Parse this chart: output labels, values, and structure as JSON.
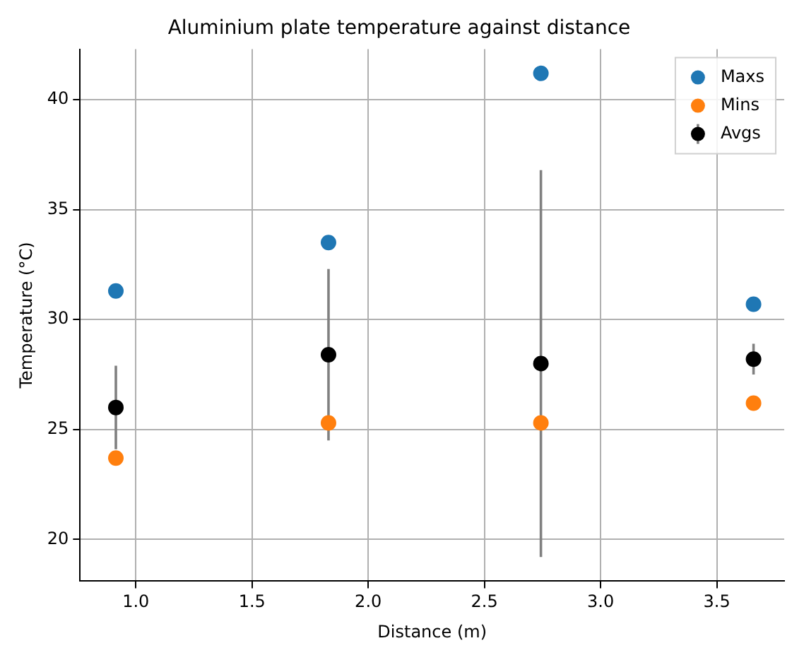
{
  "chart_data": {
    "type": "scatter",
    "title": "Aluminium plate temperature against distance",
    "xlabel": "Distance (m)",
    "ylabel": "Temperature (°C)",
    "x": [
      0.914,
      1.829,
      2.743,
      3.658
    ],
    "series": [
      {
        "name": "Maxs",
        "color": "#1f77b4",
        "values": [
          31.3,
          33.5,
          41.2,
          30.7
        ]
      },
      {
        "name": "Mins",
        "color": "#ff7f0e",
        "values": [
          23.7,
          25.3,
          25.3,
          26.2
        ]
      },
      {
        "name": "Avgs",
        "color": "#000000",
        "values": [
          26.0,
          28.4,
          28.0,
          28.2
        ],
        "errors": [
          1.9,
          3.9,
          8.8,
          0.7
        ]
      }
    ],
    "xlim": [
      0.76,
      3.79
    ],
    "xticks": [
      {
        "value": 1,
        "label": "1.0"
      },
      1.5,
      {
        "value": 2,
        "label": "2.0"
      },
      2.5,
      {
        "value": 3,
        "label": "3.0"
      },
      3.5
    ],
    "ylim": [
      18.1,
      42.3
    ],
    "yticks": [
      20,
      25,
      30,
      35,
      40
    ],
    "grid": true,
    "legend": "top right",
    "marker": "circle"
  }
}
